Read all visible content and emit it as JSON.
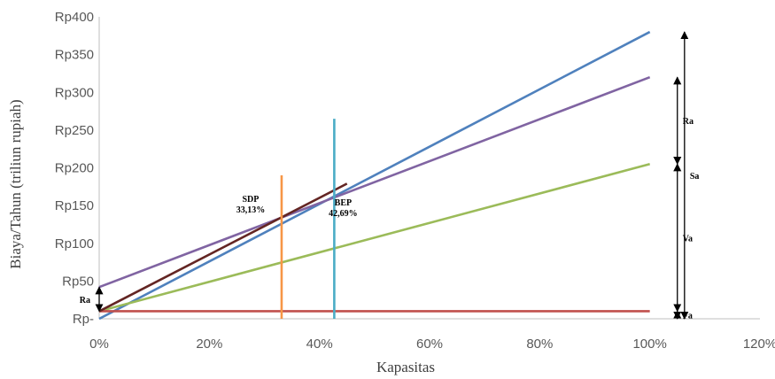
{
  "chart_data": {
    "type": "line",
    "xlabel": "Kapasitas",
    "ylabel": "Biaya/Tahun (triliun rupiah)",
    "xlim": [
      0,
      120
    ],
    "ylim": [
      0,
      400
    ],
    "x_ticks": [
      "0%",
      "20%",
      "40%",
      "60%",
      "80%",
      "100%",
      "120%"
    ],
    "y_ticks": [
      "Rp-",
      "Rp50",
      "Rp100",
      "Rp150",
      "Rp200",
      "Rp250",
      "Rp300",
      "Rp350",
      "Rp400"
    ],
    "grid": false,
    "legend": "none",
    "series": [
      {
        "color": "#4f81bd",
        "points": [
          [
            0,
            0
          ],
          [
            100,
            380
          ]
        ]
      },
      {
        "color": "#8064a2",
        "points": [
          [
            0,
            42
          ],
          [
            100,
            320
          ]
        ]
      },
      {
        "color": "#9bbb59",
        "points": [
          [
            0,
            10
          ],
          [
            100,
            205
          ]
        ]
      },
      {
        "color": "#c0504d",
        "points": [
          [
            0,
            10
          ],
          [
            100,
            10
          ]
        ]
      },
      {
        "color": "#632523",
        "points": [
          [
            0,
            10
          ],
          [
            45,
            179
          ]
        ]
      }
    ],
    "vlines": [
      {
        "color": "#f79646",
        "x": 33.13,
        "y": [
          0,
          190
        ]
      },
      {
        "color": "#4bacc6",
        "x": 42.69,
        "y": [
          0,
          265
        ]
      }
    ],
    "annotations": [
      {
        "name": "sdp",
        "lines": [
          "SDP",
          "33,13%"
        ],
        "x": 27.5,
        "y": 155
      },
      {
        "name": "bep",
        "lines": [
          "BEP",
          "42,69%"
        ],
        "x": 44.3,
        "y": 150
      }
    ],
    "brackets": [
      {
        "name": "ra-left",
        "label": "Ra",
        "x": 0,
        "y": [
          10,
          42
        ],
        "label_side": "left"
      },
      {
        "name": "ra-right",
        "label": "Ra",
        "x": 105,
        "y": [
          205,
          320
        ],
        "label_side": "right"
      },
      {
        "name": "va",
        "label": "Va",
        "x": 105,
        "y": [
          10,
          205
        ],
        "label_side": "right"
      },
      {
        "name": "fa",
        "label": "Fa",
        "x": 105,
        "y": [
          0,
          10
        ],
        "label_side": "right"
      },
      {
        "name": "sa",
        "label": "Sa",
        "x": 106.3,
        "y": [
          0,
          380
        ],
        "label_side": "right"
      }
    ]
  }
}
